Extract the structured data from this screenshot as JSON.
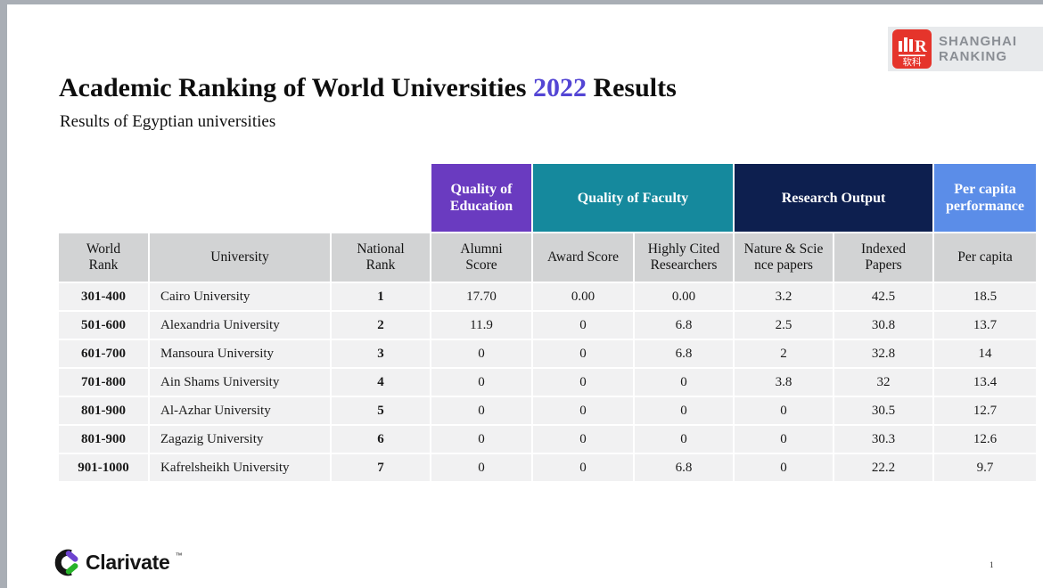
{
  "slide": {
    "title": {
      "prefix": "Academic Ranking of World Universities ",
      "year": "2022",
      "suffix": " Results"
    },
    "subtitle": "Results of Egyptian universities",
    "page_number": "1"
  },
  "logos": {
    "shanghai_ranking": {
      "word1": "SHANGHAI",
      "word2": "RANKING",
      "mark_letter": "R",
      "mark_chinese": "软科",
      "mark_color": "#e5342b",
      "text_color": "#8a8e94"
    },
    "clarivate": {
      "wordmark": "Clarivate",
      "trademark": "™",
      "ring_color": "#161616",
      "purple": "#6d43cf",
      "green": "#28b32a"
    }
  },
  "colors": {
    "year_accent": "#5345d4",
    "frame_gray": "#a9aeb5",
    "header_cell_gray": "#d2d3d4",
    "data_cell_gray": "#f1f1f2"
  },
  "table": {
    "groups": [
      {
        "label": "Quality of Education",
        "span": 1,
        "color": "#6a3bc0"
      },
      {
        "label": "Quality of Faculty",
        "span": 2,
        "color": "#15899d"
      },
      {
        "label": "Research Output",
        "span": 2,
        "color": "#0d1f4f"
      },
      {
        "label": "Per capita performance",
        "span": 1,
        "color": "#5b8de8"
      }
    ],
    "columns": [
      "World Rank",
      "University",
      "National Rank",
      "Alumni Score",
      "Award Score",
      "Highly Cited Researchers",
      "Nature & Science papers",
      "Indexed Papers",
      "Per capita"
    ],
    "rows": [
      [
        "301-400",
        "Cairo University",
        "1",
        "17.70",
        "0.00",
        "0.00",
        "3.2",
        "42.5",
        "18.5"
      ],
      [
        "501-600",
        "Alexandria University",
        "2",
        "11.9",
        "0",
        "6.8",
        "2.5",
        "30.8",
        "13.7"
      ],
      [
        "601-700",
        "Mansoura University",
        "3",
        "0",
        "0",
        "6.8",
        "2",
        "32.8",
        "14"
      ],
      [
        "701-800",
        "Ain Shams University",
        "4",
        "0",
        "0",
        "0",
        "3.8",
        "32",
        "13.4"
      ],
      [
        "801-900",
        "Al-Azhar University",
        "5",
        "0",
        "0",
        "0",
        "0",
        "30.5",
        "12.7"
      ],
      [
        "801-900",
        "Zagazig University",
        "6",
        "0",
        "0",
        "0",
        "0",
        "30.3",
        "12.6"
      ],
      [
        "901-1000",
        "Kafrelsheikh University",
        "7",
        "0",
        "0",
        "6.8",
        "0",
        "22.2",
        "9.7"
      ]
    ]
  }
}
